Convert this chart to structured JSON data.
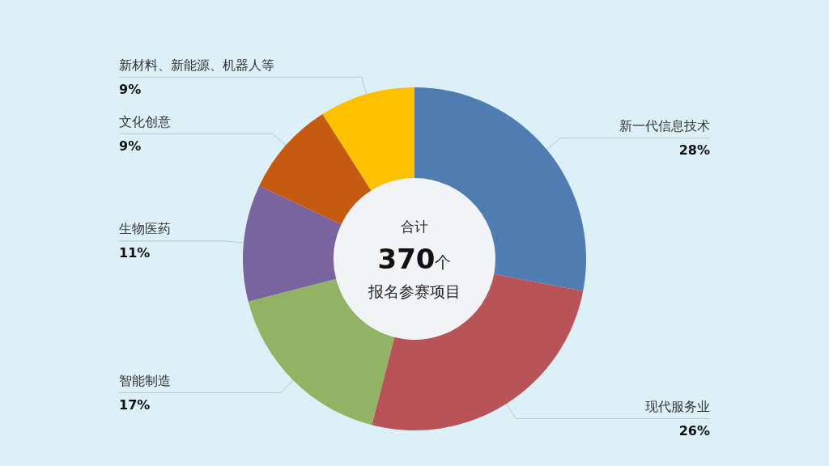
{
  "chart_data": {
    "type": "donut",
    "categories": [
      "新一代信息技术",
      "现代服务业",
      "智能制造",
      "生物医药",
      "文化创意",
      "新材料、新能源、机器人等"
    ],
    "values": [
      28,
      26,
      17,
      11,
      9,
      9
    ],
    "value_labels": [
      "28%",
      "26%",
      "17%",
      "11%",
      "9%",
      "9%"
    ],
    "colors": [
      "#4f7db2",
      "#b85358",
      "#93b263",
      "#7a64a0",
      "#c55a11",
      "#ffc000"
    ],
    "annotations": [
      "合计",
      "370个",
      "报名参赛项目"
    ]
  }
}
